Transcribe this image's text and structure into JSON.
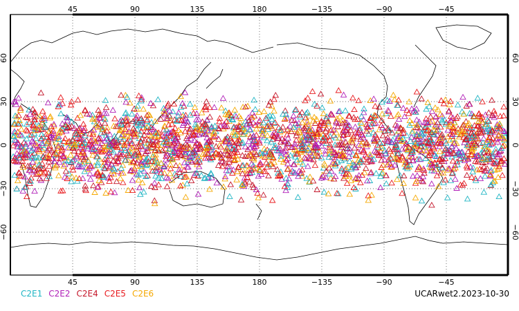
{
  "map": {
    "top_lon_labels": [
      "45",
      "90",
      "135",
      "180",
      "−135",
      "−90",
      "−45"
    ],
    "bottom_lon_labels": [
      "45",
      "90",
      "135",
      "180",
      "−135",
      "−90",
      "−45"
    ],
    "left_lat_labels": [
      "60",
      "30",
      "0",
      "−30",
      "−60"
    ],
    "right_lat_labels": [
      "60",
      "30",
      "0",
      "−30",
      "−60"
    ],
    "lon_range": [
      0,
      360
    ],
    "lat_range": [
      -90,
      90
    ],
    "grid": "dotted",
    "marker": "triangle-outline"
  },
  "legend": [
    {
      "label": "C2E1",
      "color": "#1fb5c4"
    },
    {
      "label": "C2E2",
      "color": "#b01fb8"
    },
    {
      "label": "C2E4",
      "color": "#c4162a"
    },
    {
      "label": "C2E5",
      "color": "#e8181c"
    },
    {
      "label": "C2E6",
      "color": "#f5a800"
    }
  ],
  "stamp": "UCARwet2.2023-10-30"
}
